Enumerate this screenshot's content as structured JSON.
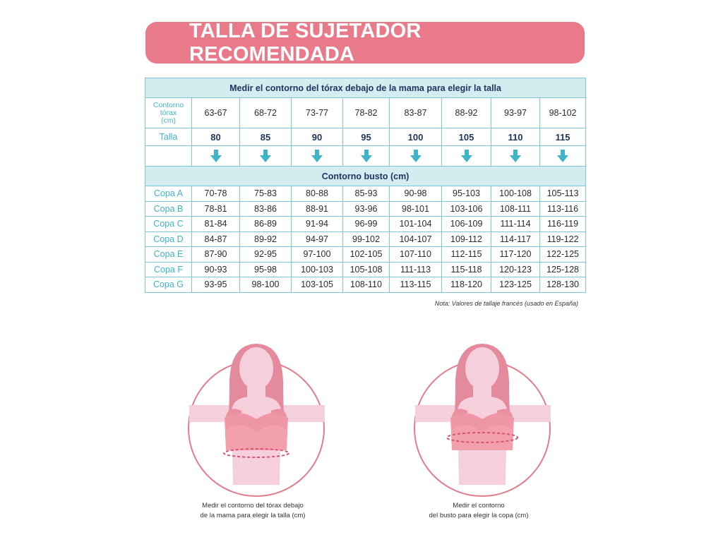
{
  "title": "TALLA DE SUJETADOR RECOMENDADA",
  "table": {
    "header1": "Medir el contorno del tórax debajo de la mama para elegir la talla",
    "torax_label": [
      "Contorno",
      "tórax",
      "(cm)"
    ],
    "torax_values": [
      "63-67",
      "68-72",
      "73-77",
      "78-82",
      "83-87",
      "88-92",
      "93-97",
      "98-102"
    ],
    "talla_label": "Talla",
    "talla_values": [
      "80",
      "85",
      "90",
      "95",
      "100",
      "105",
      "110",
      "115"
    ],
    "header2": "Contorno busto (cm)",
    "copas": [
      {
        "label": "Copa A",
        "values": [
          "70-78",
          "75-83",
          "80-88",
          "85-93",
          "90-98",
          "95-103",
          "100-108",
          "105-113"
        ]
      },
      {
        "label": "Copa B",
        "values": [
          "78-81",
          "83-86",
          "88-91",
          "93-96",
          "98-101",
          "103-106",
          "108-111",
          "113-116"
        ]
      },
      {
        "label": "Copa C",
        "values": [
          "81-84",
          "86-89",
          "91-94",
          "96-99",
          "101-104",
          "106-109",
          "111-114",
          "116-119"
        ]
      },
      {
        "label": "Copa D",
        "values": [
          "84-87",
          "89-92",
          "94-97",
          "99-102",
          "104-107",
          "109-112",
          "114-117",
          "119-122"
        ]
      },
      {
        "label": "Copa E",
        "values": [
          "87-90",
          "92-95",
          "97-100",
          "102-105",
          "107-110",
          "112-115",
          "117-120",
          "122-125"
        ]
      },
      {
        "label": "Copa F",
        "values": [
          "90-93",
          "95-98",
          "100-103",
          "105-108",
          "111-113",
          "115-118",
          "120-123",
          "125-128"
        ]
      },
      {
        "label": "Copa G",
        "values": [
          "93-95",
          "98-100",
          "103-105",
          "108-110",
          "113-115",
          "118-120",
          "123-125",
          "128-130"
        ]
      }
    ]
  },
  "note": "Nota: Valores de tallaje francés (usado en España)",
  "captions": {
    "fig1": [
      "Medir el contorno del tórax debajo",
      "de la mama para elegir la talla (cm)"
    ],
    "fig2": [
      "Medir el contorno",
      "del busto para elegir la copa (cm)"
    ]
  },
  "colors": {
    "banner": "#e87a89",
    "accent": "#3fb4c9",
    "header_bg": "#d3ecef",
    "navy": "#1f3560"
  }
}
